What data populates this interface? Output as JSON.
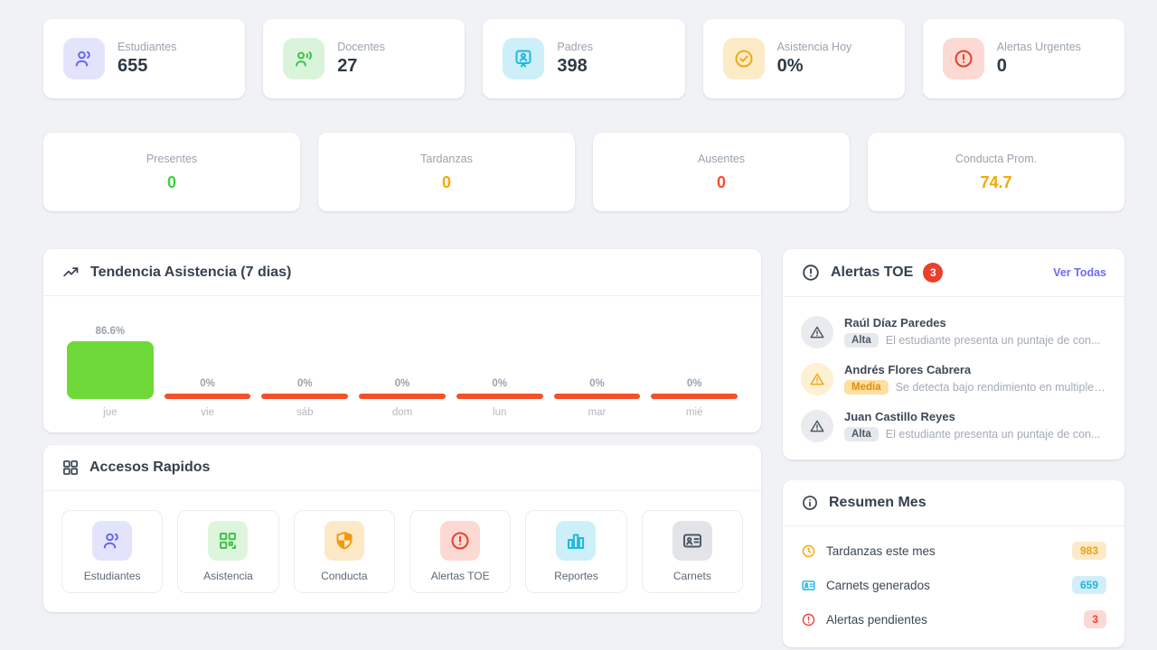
{
  "stats_top": [
    {
      "label": "Estudiantes",
      "value": "655",
      "icon": "users-icon",
      "icon_style": "background:#e3e4fc;color:#6466f1"
    },
    {
      "label": "Docentes",
      "value": "27",
      "icon": "teacher-icon",
      "icon_style": "background:#d9f4da;color:#3fc24c"
    },
    {
      "label": "Padres",
      "value": "398",
      "icon": "parent-badge-icon",
      "icon_style": "background:#cdeff8;color:#1eb8dd"
    },
    {
      "label": "Asistencia Hoy",
      "value": "0%",
      "icon": "check-circle-icon",
      "icon_style": "background:#fdeac6;color:#f0a818"
    },
    {
      "label": "Alertas Urgentes",
      "value": "0",
      "icon": "alert-circle-icon",
      "icon_style": "background:#fcd9d3;color:#e8402c"
    }
  ],
  "stats_mid": [
    {
      "label": "Presentes",
      "value": "0",
      "value_style": "color:#3ad23c"
    },
    {
      "label": "Tardanzas",
      "value": "0",
      "value_style": "color:#f5a800"
    },
    {
      "label": "Ausentes",
      "value": "0",
      "value_style": "color:#f2502c"
    },
    {
      "label": "Conducta Prom.",
      "value": "74.7",
      "value_style": "color:#f5a800"
    }
  ],
  "attendance": {
    "title": "Tendencia Asistencia (7 dias)",
    "chart_data": {
      "type": "bar",
      "categories": [
        "jue",
        "vie",
        "sáb",
        "dom",
        "lun",
        "mar",
        "mié"
      ],
      "values": [
        86.6,
        0,
        0,
        0,
        0,
        0,
        0
      ],
      "value_labels": [
        "86.6%",
        "0%",
        "0%",
        "0%",
        "0%",
        "0%",
        "0%"
      ],
      "ylim": [
        0,
        100
      ],
      "bar_color_positive": "#6fd93a",
      "bar_color_zero": "#f4502c",
      "label_color": "#9aa3ae",
      "grid": false,
      "legend": false
    }
  },
  "alerts": {
    "title": "Alertas TOE",
    "count": "3",
    "count_color": "#e8402c",
    "link_label": "Ver Todas",
    "link_color": "#6f6af8",
    "items": [
      {
        "name": "Raúl Díaz Paredes",
        "severity": "Alta",
        "description": "El estudiante presenta un puntaje de con...",
        "icon_style": "background:#e9ebee;color:#4d5a66",
        "sev_style": "background:#e5e8ec;color:#4d5a66"
      },
      {
        "name": "Andrés Flores Cabrera",
        "severity": "Media",
        "description": "Se detecta bajo rendimiento en multiples...",
        "icon_style": "background:#fdf0d3;color:#f0a818",
        "sev_style": "background:#fce0a0;color:#e28c0a"
      },
      {
        "name": "Juan Castillo Reyes",
        "severity": "Alta",
        "description": "El estudiante presenta un puntaje de con...",
        "icon_style": "background:#e9ebee;color:#4d5a66",
        "sev_style": "background:#e5e8ec;color:#4d5a66"
      }
    ]
  },
  "quick_access": {
    "title": "Accesos Rapidos",
    "items": [
      {
        "label": "Estudiantes",
        "icon": "users-icon",
        "icon_style": "background:#e3e4fc;color:#6466f1"
      },
      {
        "label": "Asistencia",
        "icon": "qr-code-icon",
        "icon_style": "background:#dcf5dc;color:#3fc24c"
      },
      {
        "label": "Conducta",
        "icon": "shield-icon",
        "icon_style": "background:#fde8c8;color:#f09a0c"
      },
      {
        "label": "Alertas TOE",
        "icon": "alert-circle-icon",
        "icon_style": "background:#fcd9d3;color:#e8402c"
      },
      {
        "label": "Reportes",
        "icon": "bar-chart-icon",
        "icon_style": "background:#cdeff8;color:#1eb8dd"
      },
      {
        "label": "Carnets",
        "icon": "id-card-icon",
        "icon_style": "background:#e2e4e8;color:#4d5a66"
      }
    ]
  },
  "summary": {
    "title": "Resumen Mes",
    "rows": [
      {
        "label": "Tardanzas este mes",
        "value": "983",
        "icon": "clock-icon",
        "icon_style": "color:#f5a800",
        "badge_style": "background:#fbe9c8;color:#eda112"
      },
      {
        "label": "Carnets generados",
        "value": "659",
        "icon": "id-card-icon",
        "icon_style": "color:#1fb6df",
        "badge_style": "background:#d2eef8;color:#1fb6df"
      },
      {
        "label": "Alertas pendientes",
        "value": "3",
        "icon": "alert-circle-icon",
        "icon_style": "color:#ef4330",
        "badge_style": "background:#fbd9d6;color:#ef4330"
      }
    ]
  }
}
